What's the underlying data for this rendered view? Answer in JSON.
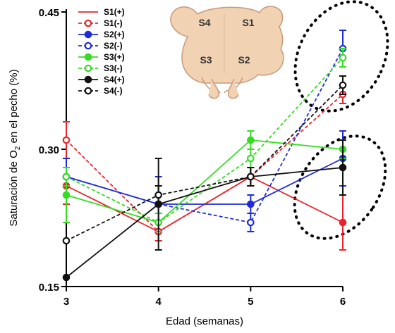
{
  "chart_data": {
    "type": "line",
    "xlabel": "Edad (semanas)",
    "ylabel": "Saturación de O₂ en el pecho (%)",
    "x": [
      3,
      4,
      5,
      6
    ],
    "x_ticks": [
      "3",
      "4",
      "5",
      "6"
    ],
    "y_ticks": [
      "0.15",
      "0.30",
      "0.45"
    ],
    "xlim": [
      3,
      6
    ],
    "ylim": [
      0.15,
      0.45
    ],
    "grid": false,
    "legend_position": "top-left",
    "series": [
      {
        "name": "S1(+)",
        "color": "#e8242a",
        "dashed": false,
        "marker": "filled",
        "values": [
          0.26,
          0.21,
          0.27,
          0.22
        ],
        "err": [
          0.02,
          0.01,
          0.01,
          0.03
        ]
      },
      {
        "name": "S1(-)",
        "color": "#e8242a",
        "dashed": true,
        "marker": "open",
        "values": [
          0.31,
          0.21,
          0.27,
          0.36
        ],
        "err": [
          0.02,
          0.01,
          0.01,
          0.01
        ]
      },
      {
        "name": "S2(+)",
        "color": "#1f2bd6",
        "dashed": false,
        "marker": "filled",
        "values": [
          0.27,
          0.24,
          0.24,
          0.29
        ],
        "err": [
          0.02,
          0.03,
          0.01,
          0.03
        ]
      },
      {
        "name": "S2(-)",
        "color": "#1f2bd6",
        "dashed": true,
        "marker": "open",
        "values": [
          0.27,
          0.24,
          0.22,
          0.41
        ],
        "err": [
          0.02,
          0.01,
          0.01,
          0.02
        ]
      },
      {
        "name": "S3(+)",
        "color": "#33dd22",
        "dashed": false,
        "marker": "filled",
        "values": [
          0.25,
          0.22,
          0.31,
          0.3
        ],
        "err": [
          0.03,
          0.01,
          0.01,
          0.01
        ]
      },
      {
        "name": "S3(-)",
        "color": "#33dd22",
        "dashed": true,
        "marker": "open",
        "values": [
          0.27,
          0.22,
          0.29,
          0.4
        ],
        "err": [
          0.01,
          0.01,
          0.01,
          0.01
        ]
      },
      {
        "name": "S4(+)",
        "color": "#111111",
        "dashed": false,
        "marker": "filled",
        "values": [
          0.16,
          0.24,
          0.27,
          0.28
        ],
        "err": [
          0.0,
          0.05,
          0.01,
          0.03
        ]
      },
      {
        "name": "S4(-)",
        "color": "#111111",
        "dashed": true,
        "marker": "open",
        "values": [
          0.2,
          0.25,
          0.27,
          0.37
        ],
        "err": [
          0.0,
          0.01,
          0.01,
          0.01
        ]
      }
    ]
  },
  "inset": {
    "regions": [
      "S4",
      "S1",
      "S3",
      "S2"
    ]
  }
}
